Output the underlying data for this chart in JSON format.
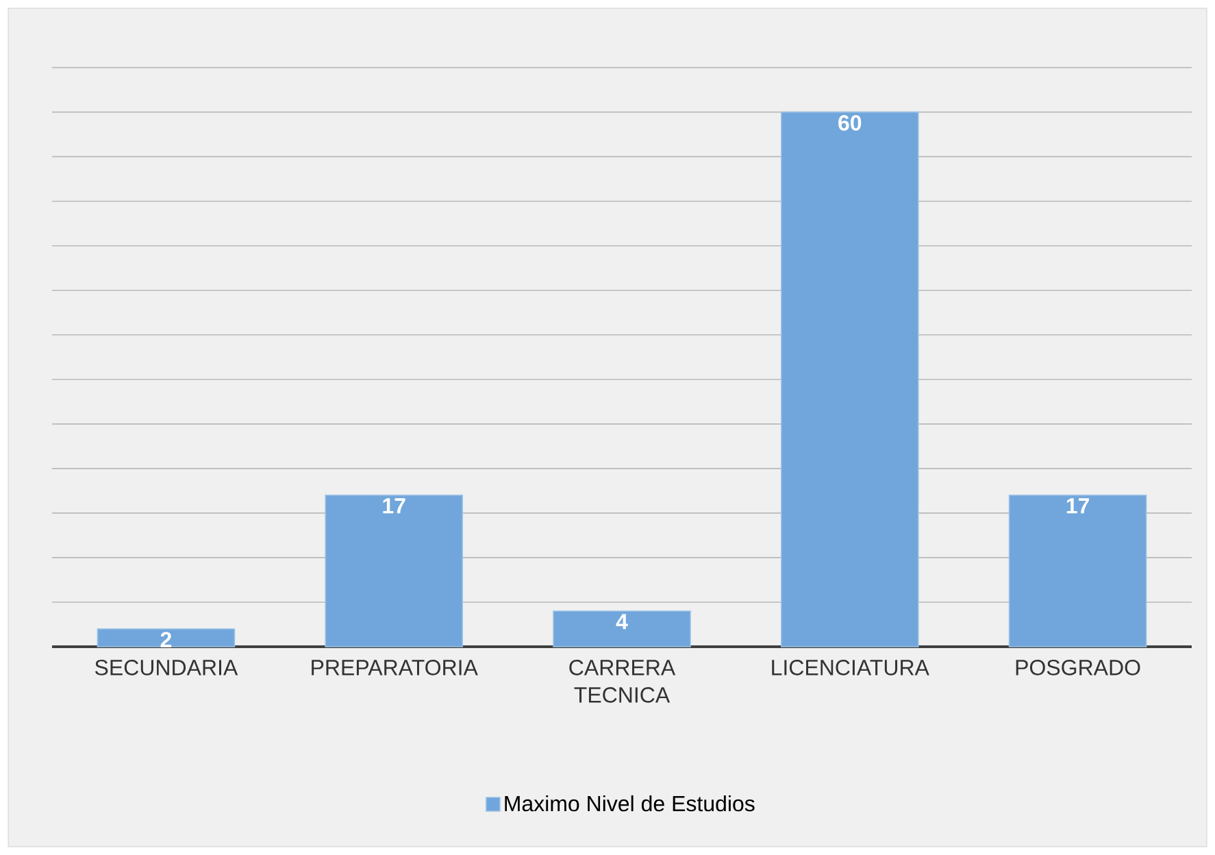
{
  "chart_data": {
    "type": "bar",
    "categories": [
      "SECUNDARIA",
      "PREPARATORIA",
      "CARRERA TECNICA",
      "LICENCIATURA",
      "POSGRADO"
    ],
    "series": [
      {
        "name": "Maximo Nivel de Estudios",
        "color": "#70a6db",
        "values": [
          2,
          17,
          4,
          60,
          17
        ]
      }
    ],
    "tick_labels": "x",
    "grid": "y",
    "legend": "bottom",
    "data_labels": true
  }
}
